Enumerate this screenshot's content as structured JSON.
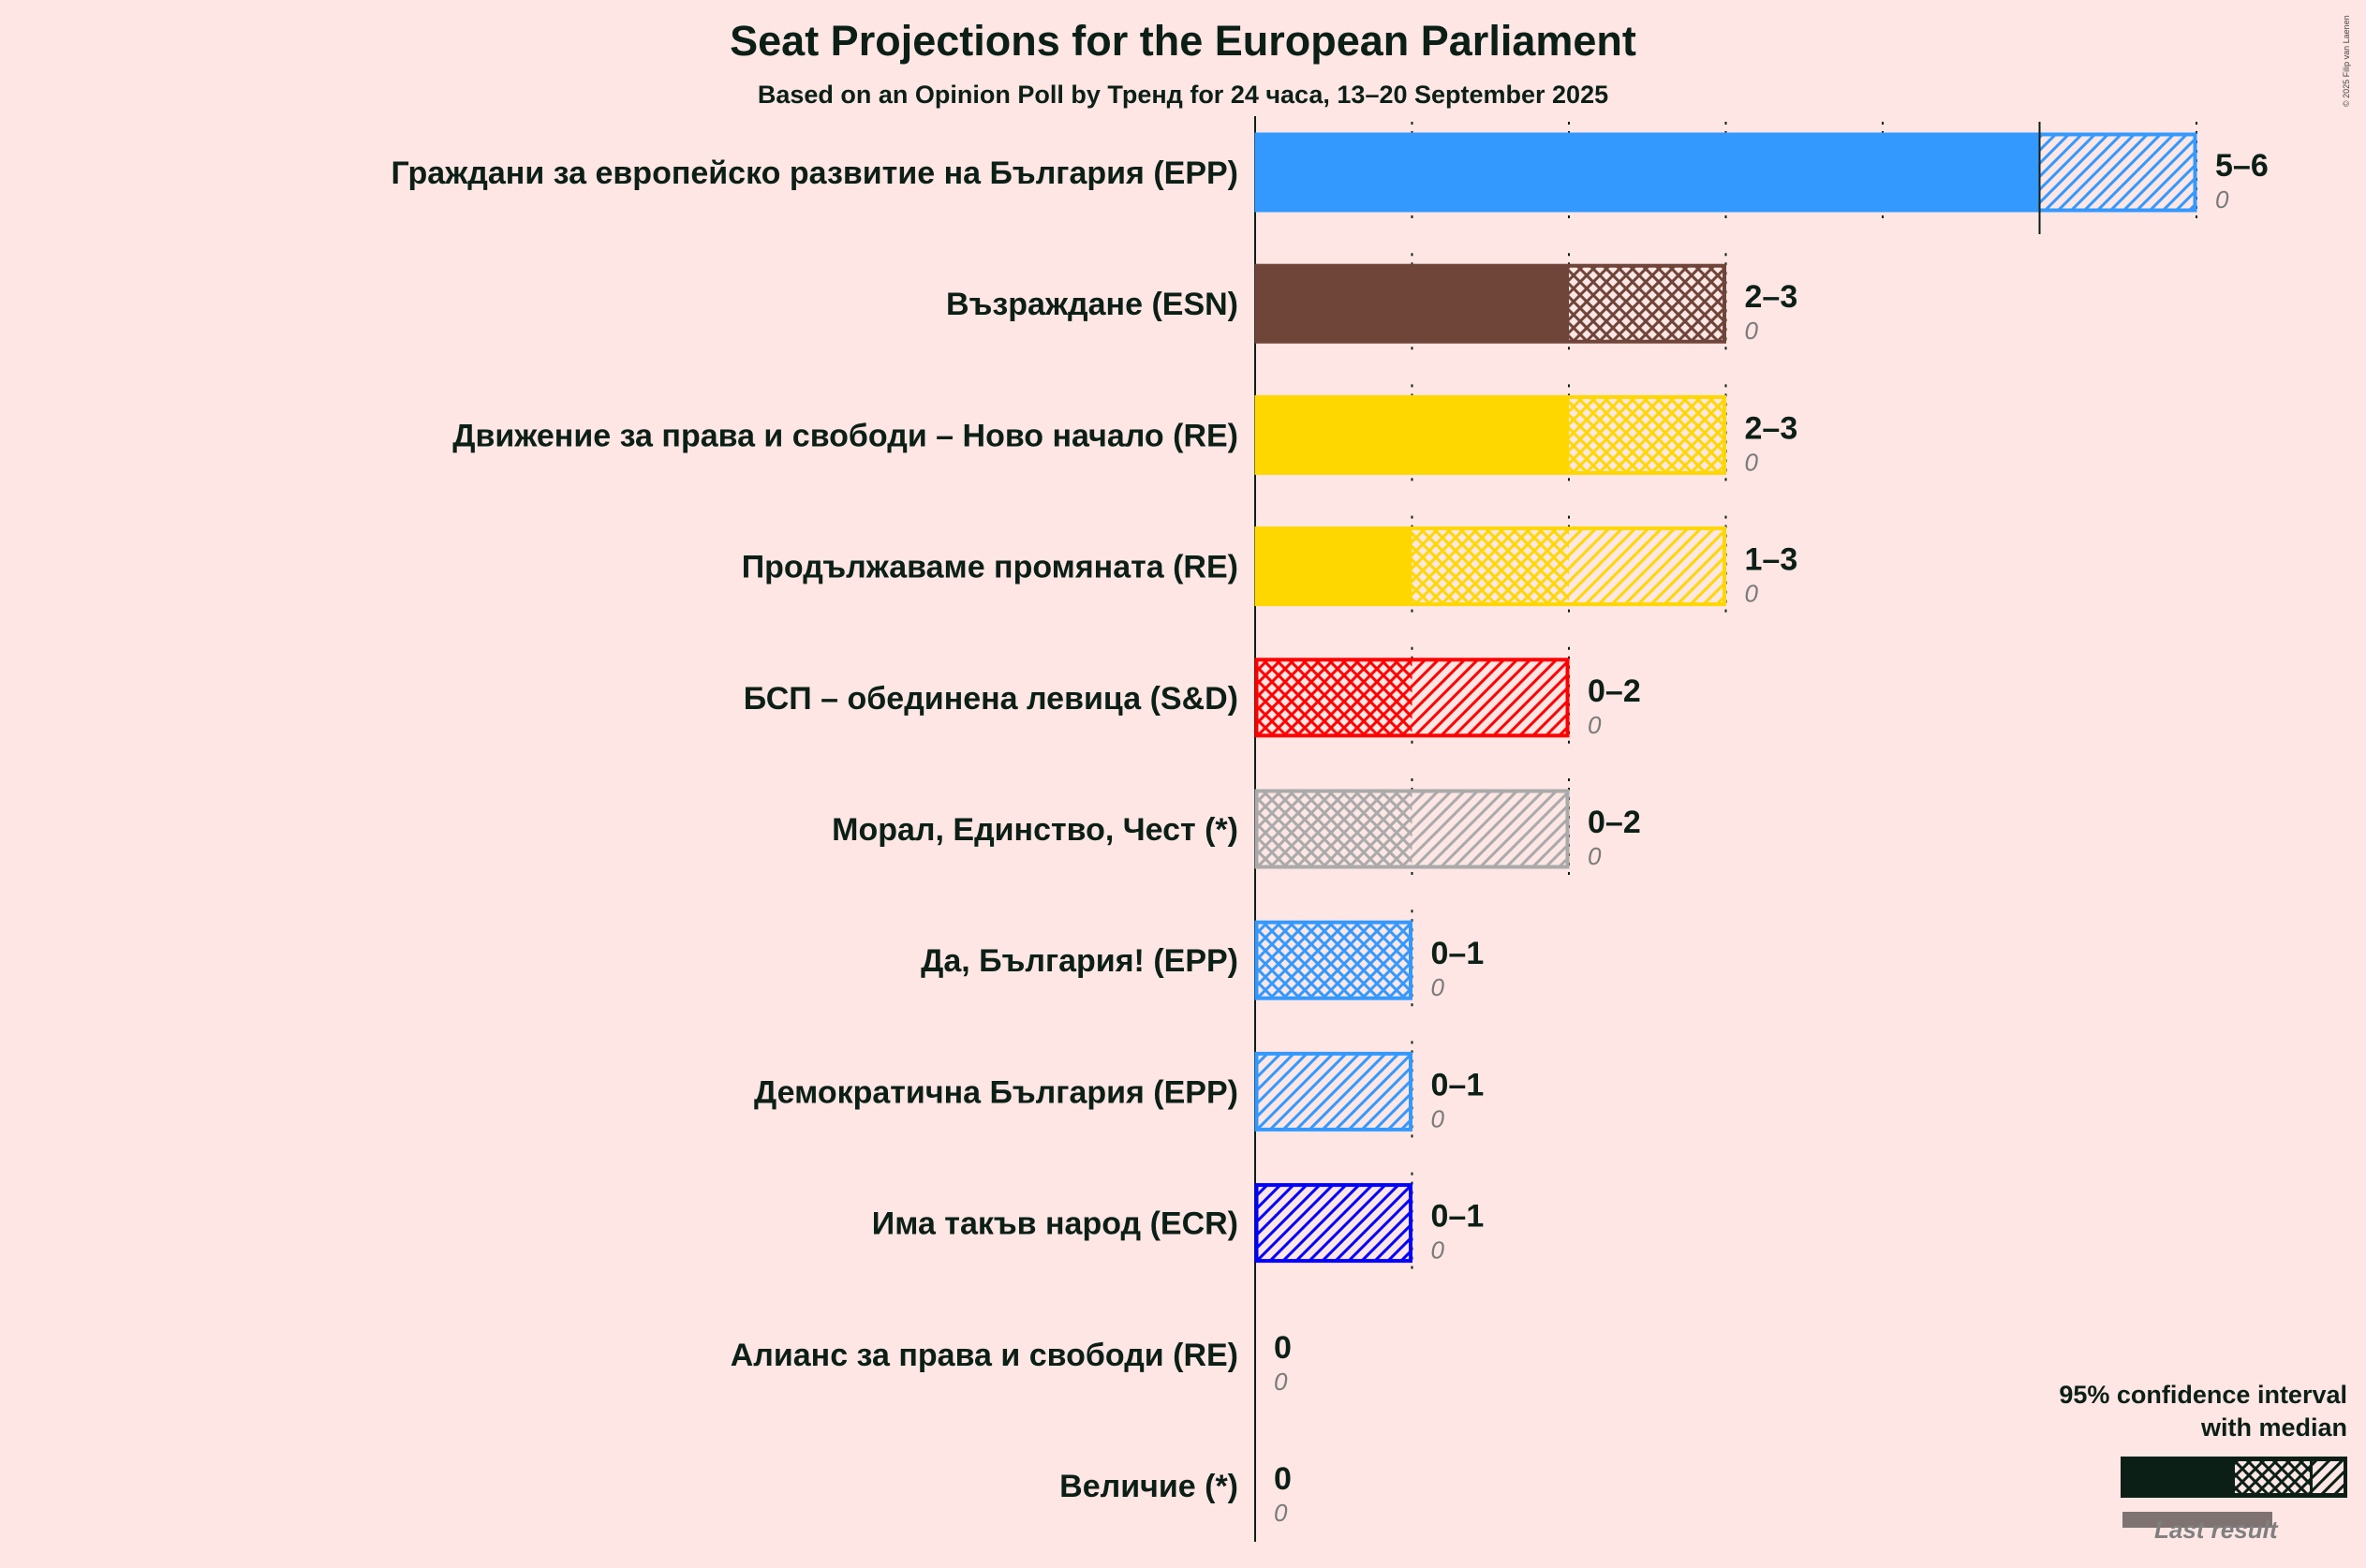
{
  "title": "Seat Projections for the European Parliament",
  "subtitle": "Based on an Opinion Poll by Тренд for 24 часа, 13–20 September 2025",
  "copyright": "© 2025 Filip van Laenen",
  "legend": {
    "title_line1": "95% confidence interval",
    "title_line2": "with median",
    "last_result": "Last result"
  },
  "colors": {
    "background": "#fde6e4",
    "text": "#0c1f17",
    "EPP": "#3399ff",
    "ESN": "#6f4439",
    "RE": "#ffd700",
    "SD": "#ff0000",
    "other": "#aaaaaa",
    "ECR": "#0000ff"
  },
  "chart_data": {
    "type": "bar",
    "orientation": "horizontal",
    "title": "Seat Projections for the European Parliament",
    "xlim": [
      0,
      6
    ],
    "grid": true,
    "legend_placement": "bottom-right",
    "series": [
      {
        "name": "Граждани за европейско развитие на България (EPP)",
        "low": 5,
        "median": 5,
        "high": 6,
        "range": "5–6",
        "last": "0",
        "color": "#3399ff"
      },
      {
        "name": "Възраждане (ESN)",
        "low": 2,
        "median": 3,
        "high": 3,
        "range": "2–3",
        "last": "0",
        "color": "#6f4439"
      },
      {
        "name": "Движение за права и свободи – Ново начало (RE)",
        "low": 2,
        "median": 3,
        "high": 3,
        "range": "2–3",
        "last": "0",
        "color": "#ffd700"
      },
      {
        "name": "Продължаваме промяната (RE)",
        "low": 1,
        "median": 2,
        "high": 3,
        "range": "1–3",
        "last": "0",
        "color": "#ffd700"
      },
      {
        "name": "БСП – обединена левица (S&D)",
        "low": 0,
        "median": 1,
        "high": 2,
        "range": "0–2",
        "last": "0",
        "color": "#ff0000"
      },
      {
        "name": "Морал, Единство, Чест (*)",
        "low": 0,
        "median": 1,
        "high": 2,
        "range": "0–2",
        "last": "0",
        "color": "#aaaaaa"
      },
      {
        "name": "Да, България! (EPP)",
        "low": 0,
        "median": 1,
        "high": 1,
        "range": "0–1",
        "last": "0",
        "color": "#3399ff"
      },
      {
        "name": "Демократична България (EPP)",
        "low": 0,
        "median": 0,
        "high": 1,
        "range": "0–1",
        "last": "0",
        "color": "#3399ff"
      },
      {
        "name": "Има такъв народ (ECR)",
        "low": 0,
        "median": 0,
        "high": 1,
        "range": "0–1",
        "last": "0",
        "color": "#0000ff"
      },
      {
        "name": "Алианс за права и свободи (RE)",
        "low": 0,
        "median": 0,
        "high": 0,
        "range": "0",
        "last": "0",
        "color": "#ffd700"
      },
      {
        "name": "Величие (*)",
        "low": 0,
        "median": 0,
        "high": 0,
        "range": "0",
        "last": "0",
        "color": "#aaaaaa"
      }
    ]
  }
}
